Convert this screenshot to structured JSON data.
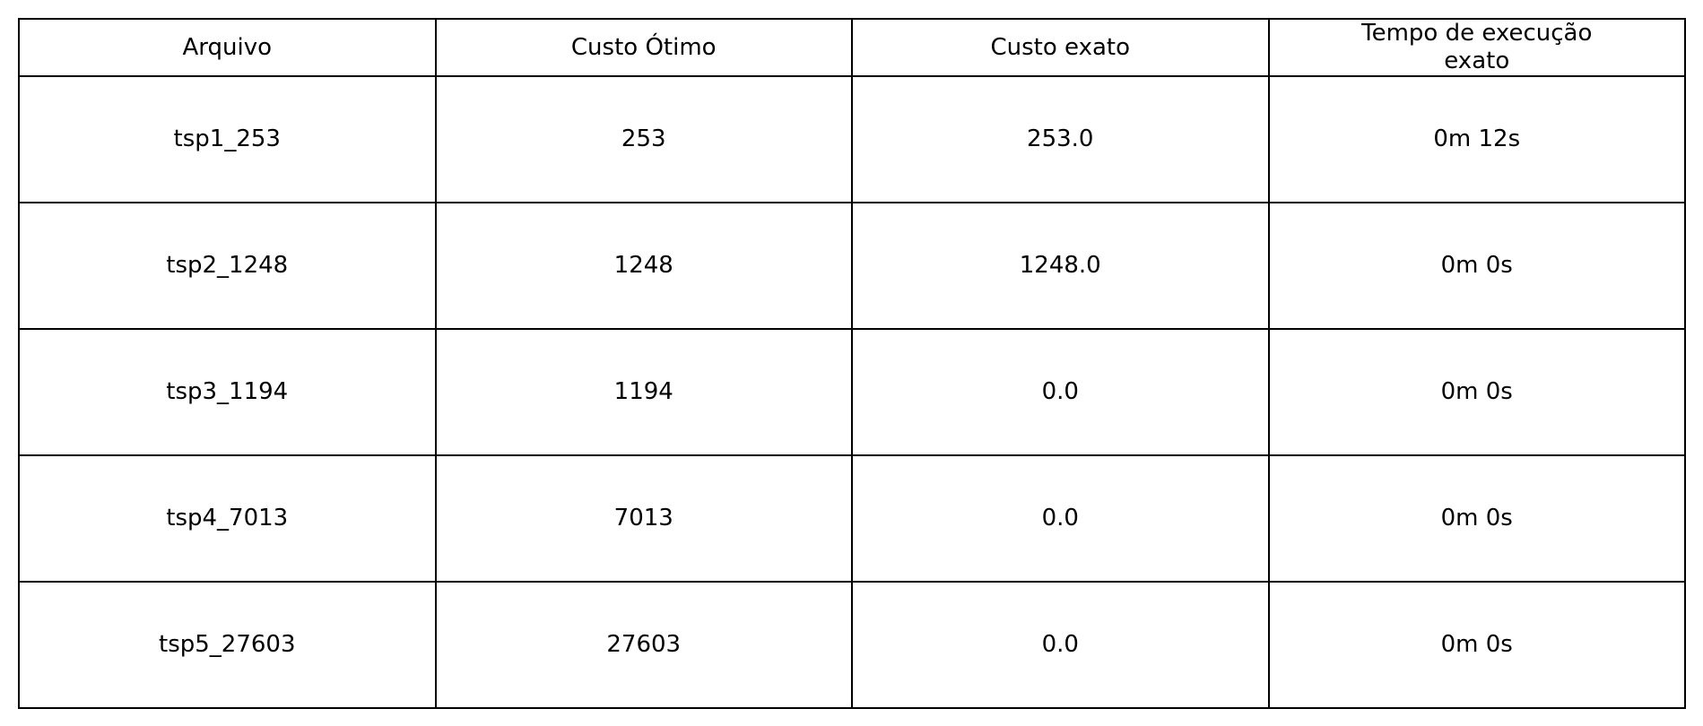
{
  "chart_data": {
    "type": "table",
    "columns": [
      "Arquivo",
      "Custo Ótimo",
      "Custo exato",
      "Tempo de execução\nexato"
    ],
    "rows": [
      [
        "tsp1_253",
        "253",
        "253.0",
        "0m 12s"
      ],
      [
        "tsp2_1248",
        "1248",
        "1248.0",
        "0m 0s"
      ],
      [
        "tsp3_1194",
        "1194",
        "0.0",
        "0m 0s"
      ],
      [
        "tsp4_7013",
        "7013",
        "0.0",
        "0m 0s"
      ],
      [
        "tsp5_27603",
        "27603",
        "0.0",
        "0m 0s"
      ]
    ]
  }
}
